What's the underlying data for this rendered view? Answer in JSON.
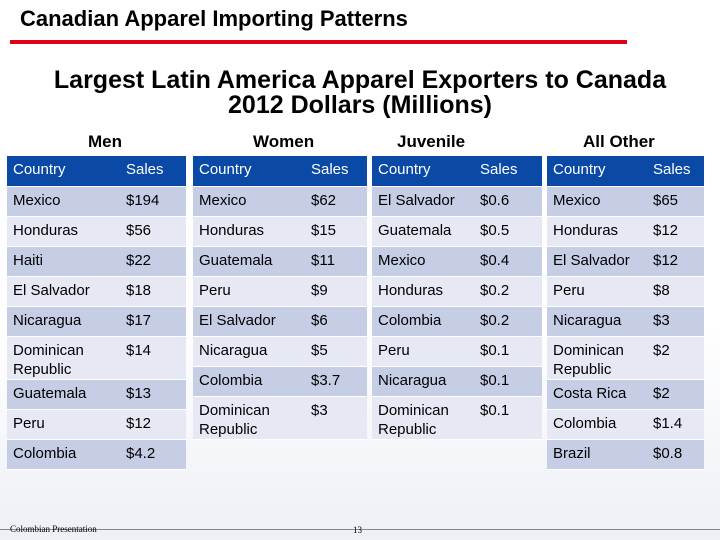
{
  "slide": {
    "title": "Canadian Apparel Importing Patterns",
    "subtitle_line1": "Largest Latin America Apparel Exporters to Canada",
    "subtitle_line2": "2012 Dollars (Millions)",
    "accent_color": "#e0001a",
    "header_color": "#0a4aa6",
    "footer_text": "Colombian Presentation",
    "page_number": "13"
  },
  "groups": [
    {
      "label": "Men",
      "col1": "Country",
      "col2": "Sales",
      "rows": [
        [
          "Mexico",
          "$194"
        ],
        [
          "Honduras",
          "$56"
        ],
        [
          "Haiti",
          "$22"
        ],
        [
          "El Salvador",
          "$18"
        ],
        [
          "Nicaragua",
          "$17"
        ],
        [
          "Dominican Republic",
          "$14"
        ],
        [
          "Guatemala",
          "$13"
        ],
        [
          "Peru",
          "$12"
        ],
        [
          "Colombia",
          "$4.2"
        ]
      ]
    },
    {
      "label": "Women",
      "col1": "Country",
      "col2": "Sales",
      "rows": [
        [
          "Mexico",
          "$62"
        ],
        [
          "Honduras",
          "$15"
        ],
        [
          "Guatemala",
          "$11"
        ],
        [
          "Peru",
          "$9"
        ],
        [
          "El Salvador",
          "$6"
        ],
        [
          "Nicaragua",
          "$5"
        ],
        [
          "Colombia",
          "$3.7"
        ],
        [
          "Dominican Republic",
          "$3"
        ]
      ]
    },
    {
      "label": "Juvenile",
      "col1": "Country",
      "col2": "Sales",
      "rows": [
        [
          "El Salvador",
          "$0.6"
        ],
        [
          "Guatemala",
          "$0.5"
        ],
        [
          "Mexico",
          "$0.4"
        ],
        [
          "Honduras",
          "$0.2"
        ],
        [
          "Colombia",
          "$0.2"
        ],
        [
          "Peru",
          "$0.1"
        ],
        [
          "Nicaragua",
          "$0.1"
        ],
        [
          "Dominican Republic",
          "$0.1"
        ]
      ]
    },
    {
      "label": "All Other",
      "col1": "Country",
      "col2": "Sales",
      "rows": [
        [
          "Mexico",
          "$65"
        ],
        [
          "Honduras",
          "$12"
        ],
        [
          "El Salvador",
          "$12"
        ],
        [
          "Peru",
          "$8"
        ],
        [
          "Nicaragua",
          "$3"
        ],
        [
          "Dominican Republic",
          "$2"
        ],
        [
          "Costa Rica",
          "$2"
        ],
        [
          "Colombia",
          "$1.4"
        ],
        [
          "Brazil",
          "$0.8"
        ]
      ]
    }
  ]
}
